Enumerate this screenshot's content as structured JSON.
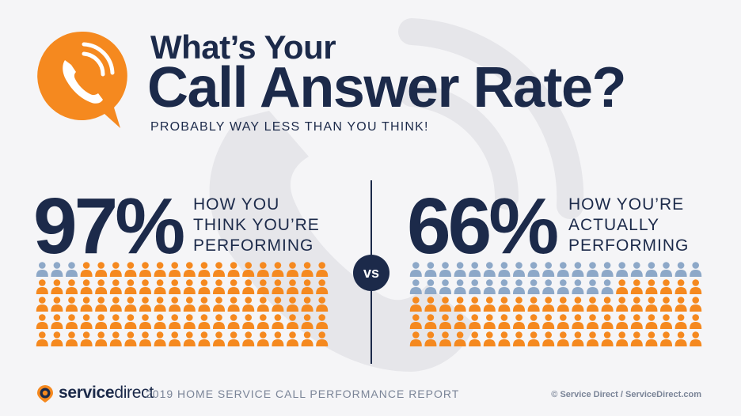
{
  "header": {
    "title_line1": "What’s Your",
    "title_line2": "Call Answer Rate?",
    "subtitle": "PROBABLY WAY LESS THAN YOU THINK!"
  },
  "vs_label": "vs",
  "chart_data": [
    {
      "type": "pictogram",
      "value_percent": 97,
      "label_text": "97%",
      "description_lines": [
        "HOW YOU",
        "THINK YOU’RE",
        "PERFORMING"
      ],
      "total_icons": 100,
      "highlighted_icons": 97,
      "highlight_color": "#f5891f",
      "remainder_color": "#8da8c8"
    },
    {
      "type": "pictogram",
      "value_percent": 66,
      "label_text": "66%",
      "description_lines": [
        "HOW YOU’RE",
        "ACTUALLY",
        "PERFORMING"
      ],
      "total_icons": 100,
      "highlighted_icons": 66,
      "highlight_color": "#f5891f",
      "remainder_color": "#8da8c8"
    }
  ],
  "footer": {
    "brand_bold": "service",
    "brand_light": "direct",
    "report": "2019 HOME SERVICE CALL PERFORMANCE REPORT",
    "copyright": "© Service Direct / ServiceDirect.com"
  },
  "colors": {
    "navy": "#1c2a4a",
    "orange": "#f5891f",
    "person_blue": "#8da8c8",
    "background": "#f5f5f7"
  }
}
